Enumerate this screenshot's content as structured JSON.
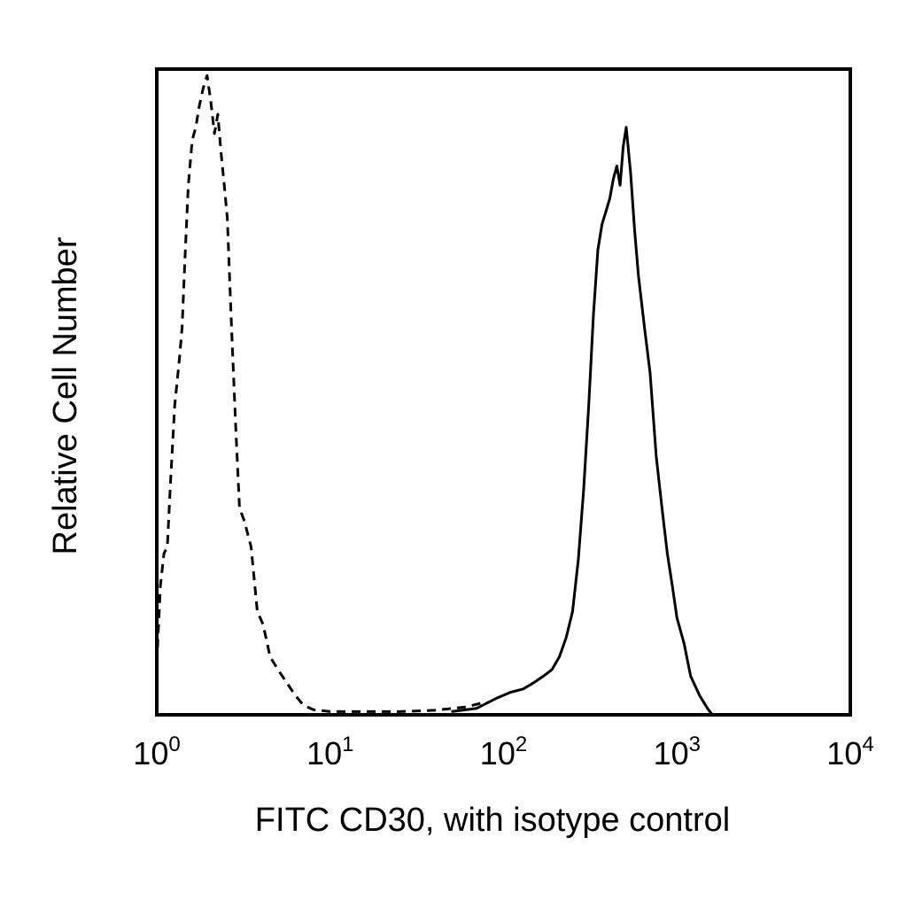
{
  "chart_data": {
    "type": "line",
    "title": "",
    "xlabel": "FITC CD30, with isotype control",
    "ylabel": "Relative Cell Number",
    "x_scale": "log10",
    "xlim": [
      1,
      10000
    ],
    "ylim": [
      0,
      100
    ],
    "grid": false,
    "y_ticks_shown": false,
    "x_ticks": [
      {
        "base": "10",
        "exp": "0",
        "value": 1
      },
      {
        "base": "10",
        "exp": "1",
        "value": 10
      },
      {
        "base": "10",
        "exp": "2",
        "value": 100
      },
      {
        "base": "10",
        "exp": "3",
        "value": 1000
      },
      {
        "base": "10",
        "exp": "4",
        "value": 10000
      }
    ],
    "series": [
      {
        "style": "dashed",
        "color": "#000000",
        "points": [
          [
            1.0,
            8
          ],
          [
            1.05,
            20
          ],
          [
            1.1,
            25
          ],
          [
            1.15,
            26
          ],
          [
            1.2,
            36
          ],
          [
            1.27,
            48
          ],
          [
            1.35,
            55
          ],
          [
            1.4,
            60
          ],
          [
            1.45,
            70
          ],
          [
            1.52,
            82
          ],
          [
            1.6,
            89
          ],
          [
            1.68,
            91
          ],
          [
            1.75,
            94
          ],
          [
            1.85,
            97
          ],
          [
            1.95,
            99
          ],
          [
            2.05,
            95
          ],
          [
            2.15,
            90
          ],
          [
            2.25,
            93
          ],
          [
            2.35,
            87
          ],
          [
            2.45,
            82
          ],
          [
            2.55,
            77
          ],
          [
            2.7,
            60
          ],
          [
            2.85,
            45
          ],
          [
            3.0,
            32
          ],
          [
            3.2,
            30
          ],
          [
            3.5,
            26
          ],
          [
            3.8,
            16
          ],
          [
            4.1,
            14
          ],
          [
            4.5,
            9
          ],
          [
            5.0,
            7
          ],
          [
            5.6,
            5
          ],
          [
            6.3,
            3
          ],
          [
            7.0,
            1.5
          ],
          [
            8.0,
            0.8
          ],
          [
            10,
            0.5
          ],
          [
            15,
            0.5
          ],
          [
            25,
            0.5
          ],
          [
            40,
            0.7
          ],
          [
            60,
            1.2
          ],
          [
            80,
            2
          ]
        ]
      },
      {
        "style": "solid",
        "color": "#000000",
        "points": [
          [
            50,
            0.5
          ],
          [
            70,
            1
          ],
          [
            90,
            2.5
          ],
          [
            110,
            3.5
          ],
          [
            130,
            4
          ],
          [
            150,
            5
          ],
          [
            170,
            6
          ],
          [
            190,
            7
          ],
          [
            210,
            9
          ],
          [
            230,
            12
          ],
          [
            250,
            16
          ],
          [
            270,
            24
          ],
          [
            290,
            35
          ],
          [
            310,
            48
          ],
          [
            330,
            62
          ],
          [
            350,
            72
          ],
          [
            370,
            76
          ],
          [
            390,
            78
          ],
          [
            410,
            80
          ],
          [
            430,
            83
          ],
          [
            450,
            85
          ],
          [
            470,
            82
          ],
          [
            490,
            88
          ],
          [
            510,
            91
          ],
          [
            540,
            84
          ],
          [
            570,
            75
          ],
          [
            600,
            68
          ],
          [
            650,
            60
          ],
          [
            700,
            53
          ],
          [
            760,
            40
          ],
          [
            820,
            32
          ],
          [
            880,
            25
          ],
          [
            940,
            20
          ],
          [
            1000,
            15
          ],
          [
            1100,
            11
          ],
          [
            1200,
            6
          ],
          [
            1350,
            3
          ],
          [
            1500,
            1
          ],
          [
            1600,
            0
          ]
        ]
      }
    ]
  }
}
